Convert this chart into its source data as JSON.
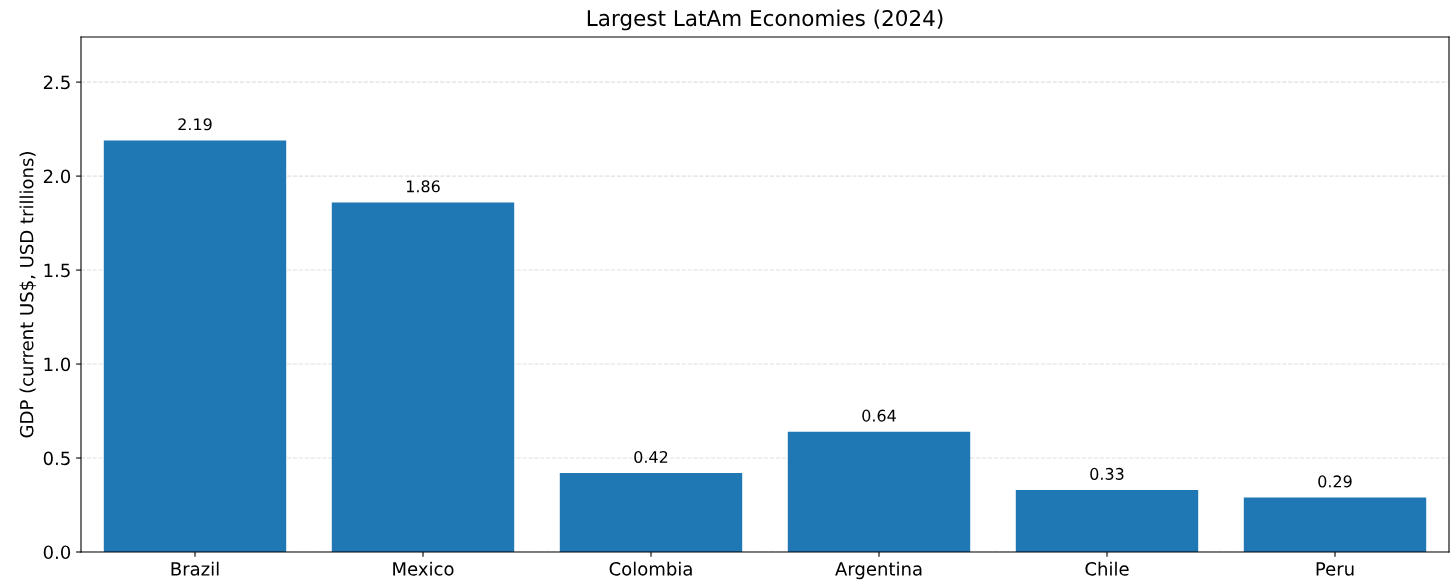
{
  "chart_data": {
    "type": "bar",
    "title": "Largest LatAm Economies (2024)",
    "ylabel": "GDP (current US$, USD trillions)",
    "categories": [
      "Brazil",
      "Mexico",
      "Colombia",
      "Argentina",
      "Chile",
      "Peru"
    ],
    "values": [
      2.19,
      1.86,
      0.42,
      0.64,
      0.33,
      0.29
    ],
    "color": "#1f77b4",
    "ylim": [
      0,
      2.74
    ],
    "yticks": [
      {
        "value": 0,
        "label": "0.0"
      },
      {
        "value": 0.5,
        "label": "0.5"
      },
      {
        "value": 1,
        "label": "1.0"
      },
      {
        "value": 1.5,
        "label": "1.5"
      },
      {
        "value": 2,
        "label": "2.0"
      },
      {
        "value": 2.5,
        "label": "2.5"
      }
    ],
    "grid": "y",
    "data_labels": true
  }
}
